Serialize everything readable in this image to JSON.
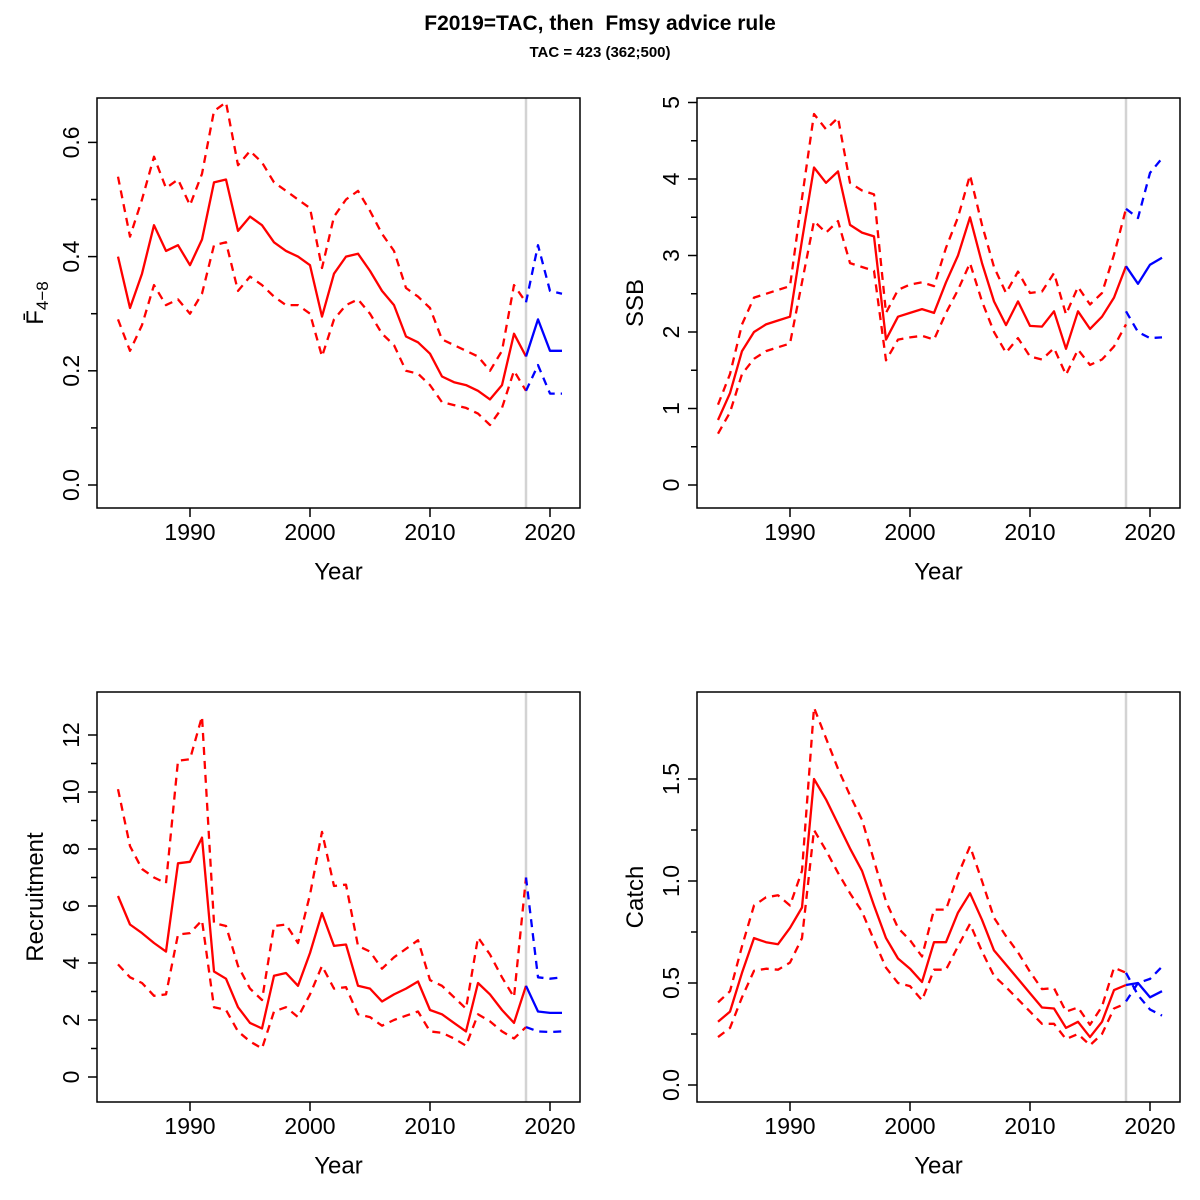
{
  "title": "F2019=TAC, then  Fmsy advice rule",
  "subtitle": "TAC = 423 (362;500)",
  "xlabel": "Year",
  "colors": {
    "historical": "#ff0000",
    "forecast": "#0000ff",
    "divider": "#d3d3d3",
    "axis": "#000000",
    "background": "#ffffff"
  },
  "x_axis": {
    "ticks": [
      1990,
      2000,
      2010,
      2020
    ],
    "range": [
      1984,
      2021
    ],
    "divider_year": 2018,
    "hist_start": 1984,
    "hist_end": 2018,
    "forecast_start": 2018,
    "forecast_end": 2021
  },
  "legend_semantics": {
    "red_solid": "historical median",
    "red_dashed": "historical confidence bounds",
    "blue_solid": "forecast median",
    "blue_dashed": "forecast confidence bounds",
    "gray_vertical_line": "assessment/forecast divider at 2018"
  },
  "chart_data": [
    {
      "id": "fbar",
      "type": "line",
      "position": "top-left",
      "ylabel_base": "F̄",
      "ylabel_sub": "4−8",
      "xlabel": "Year",
      "ylim": [
        0,
        0.68
      ],
      "yticks_labeled": [
        "0.0",
        "0.2",
        "0.4",
        "0.6"
      ],
      "ytick_values": [
        0.0,
        0.2,
        0.4,
        0.6
      ],
      "yticks_minor": [
        0.1,
        0.3,
        0.5
      ],
      "grid": false,
      "series": {
        "median": [
          0.4,
          0.31,
          0.37,
          0.455,
          0.41,
          0.42,
          0.385,
          0.43,
          0.53,
          0.535,
          0.445,
          0.47,
          0.455,
          0.425,
          0.41,
          0.4,
          0.385,
          0.295,
          0.37,
          0.4,
          0.405,
          0.375,
          0.34,
          0.315,
          0.26,
          0.25,
          0.23,
          0.19,
          0.18,
          0.175,
          0.165,
          0.15,
          0.175,
          0.265,
          0.225
        ],
        "upper": [
          0.54,
          0.435,
          0.5,
          0.575,
          0.52,
          0.535,
          0.49,
          0.545,
          0.655,
          0.67,
          0.56,
          0.585,
          0.565,
          0.53,
          0.515,
          0.5,
          0.485,
          0.38,
          0.47,
          0.5,
          0.515,
          0.48,
          0.44,
          0.41,
          0.345,
          0.33,
          0.31,
          0.255,
          0.245,
          0.235,
          0.225,
          0.2,
          0.235,
          0.35,
          0.32
        ],
        "lower": [
          0.29,
          0.235,
          0.28,
          0.35,
          0.315,
          0.325,
          0.3,
          0.335,
          0.42,
          0.425,
          0.34,
          0.365,
          0.35,
          0.33,
          0.315,
          0.315,
          0.3,
          0.225,
          0.29,
          0.315,
          0.325,
          0.3,
          0.265,
          0.245,
          0.2,
          0.195,
          0.175,
          0.145,
          0.14,
          0.135,
          0.125,
          0.105,
          0.135,
          0.2,
          0.165
        ],
        "forecast_median": [
          0.225,
          0.29,
          0.235,
          0.235
        ],
        "forecast_upper": [
          0.32,
          0.42,
          0.34,
          0.335
        ],
        "forecast_lower": [
          0.165,
          0.21,
          0.16,
          0.16
        ]
      }
    },
    {
      "id": "ssb",
      "type": "line",
      "position": "top-right",
      "ylabel_base": "SSB",
      "ylabel_sub": "",
      "xlabel": "Year",
      "ylim": [
        0,
        5
      ],
      "yticks_labeled": [
        "0",
        "1",
        "2",
        "3",
        "4",
        "5"
      ],
      "ytick_values": [
        0,
        1,
        2,
        3,
        4,
        5
      ],
      "yticks_minor": [
        0.5,
        1.5,
        2.5,
        3.5,
        4.5
      ],
      "grid": false,
      "series": {
        "median": [
          0.85,
          1.2,
          1.75,
          2.0,
          2.1,
          2.15,
          2.2,
          3.2,
          4.15,
          3.95,
          4.1,
          3.4,
          3.3,
          3.25,
          1.9,
          2.2,
          2.25,
          2.3,
          2.25,
          2.65,
          3.0,
          3.5,
          2.9,
          2.4,
          2.09,
          2.4,
          2.08,
          2.07,
          2.27,
          1.78,
          2.27,
          2.04,
          2.2,
          2.45,
          2.86
        ],
        "upper": [
          1.05,
          1.45,
          2.1,
          2.45,
          2.5,
          2.55,
          2.6,
          3.75,
          4.85,
          4.65,
          4.8,
          3.95,
          3.85,
          3.8,
          2.25,
          2.55,
          2.62,
          2.65,
          2.6,
          3.1,
          3.5,
          4.05,
          3.4,
          2.85,
          2.51,
          2.79,
          2.51,
          2.53,
          2.77,
          2.23,
          2.59,
          2.36,
          2.51,
          3.01,
          3.61
        ],
        "lower": [
          0.67,
          0.95,
          1.45,
          1.65,
          1.75,
          1.8,
          1.85,
          2.65,
          3.45,
          3.3,
          3.45,
          2.9,
          2.85,
          2.8,
          1.63,
          1.9,
          1.93,
          1.95,
          1.9,
          2.25,
          2.55,
          2.9,
          2.4,
          2.0,
          1.73,
          1.92,
          1.68,
          1.64,
          1.79,
          1.44,
          1.77,
          1.57,
          1.64,
          1.81,
          2.1
        ],
        "forecast_median": [
          2.86,
          2.63,
          2.88,
          2.97
        ],
        "forecast_upper": [
          3.61,
          3.49,
          4.08,
          4.27
        ],
        "forecast_lower": [
          2.27,
          2.0,
          1.92,
          1.93
        ]
      }
    },
    {
      "id": "recruitment",
      "type": "line",
      "position": "bottom-left",
      "ylabel_base": "Recruitment",
      "ylabel_sub": "",
      "xlabel": "Year",
      "ylim": [
        0,
        13
      ],
      "yticks_labeled": [
        "0",
        "2",
        "4",
        "6",
        "8",
        "10",
        "12"
      ],
      "ytick_values": [
        0,
        2,
        4,
        6,
        8,
        10,
        12
      ],
      "yticks_minor": [
        1,
        3,
        5,
        7,
        9,
        11
      ],
      "grid": false,
      "series": {
        "median": [
          6.35,
          5.35,
          5.05,
          4.7,
          4.4,
          7.5,
          7.55,
          8.4,
          3.7,
          3.45,
          2.45,
          1.9,
          1.7,
          3.55,
          3.65,
          3.2,
          4.35,
          5.75,
          4.6,
          4.65,
          3.2,
          3.1,
          2.65,
          2.9,
          3.1,
          3.35,
          2.35,
          2.2,
          1.9,
          1.6,
          3.3,
          2.9,
          2.35,
          1.9,
          3.2
        ],
        "upper": [
          10.1,
          8.1,
          7.3,
          7.0,
          6.8,
          11.1,
          11.15,
          12.65,
          5.4,
          5.3,
          3.9,
          3.1,
          2.7,
          5.3,
          5.35,
          4.7,
          6.4,
          8.6,
          6.7,
          6.75,
          4.6,
          4.4,
          3.8,
          4.2,
          4.5,
          4.8,
          3.4,
          3.2,
          2.8,
          2.4,
          4.9,
          4.3,
          3.5,
          2.8,
          7.0
        ],
        "lower": [
          3.95,
          3.5,
          3.3,
          2.85,
          2.9,
          5.0,
          5.05,
          5.5,
          2.45,
          2.35,
          1.6,
          1.25,
          1.0,
          2.3,
          2.45,
          2.1,
          2.9,
          3.9,
          3.1,
          3.15,
          2.2,
          2.1,
          1.8,
          2.0,
          2.15,
          2.3,
          1.6,
          1.55,
          1.35,
          1.1,
          2.2,
          1.95,
          1.6,
          1.35,
          1.75
        ],
        "forecast_median": [
          3.2,
          2.3,
          2.25,
          2.25
        ],
        "forecast_upper": [
          7.0,
          3.5,
          3.45,
          3.5
        ],
        "forecast_lower": [
          1.75,
          1.6,
          1.58,
          1.6
        ]
      }
    },
    {
      "id": "catch",
      "type": "line",
      "position": "bottom-right",
      "ylabel_base": "Catch",
      "ylabel_sub": "",
      "xlabel": "Year",
      "ylim": [
        0,
        1.9
      ],
      "yticks_labeled": [
        "0.0",
        "0.5",
        "1.0",
        "1.5"
      ],
      "ytick_values": [
        0.0,
        0.5,
        1.0,
        1.5
      ],
      "yticks_minor": [
        0.25,
        0.75,
        1.25
      ],
      "grid": false,
      "series": {
        "median": [
          0.31,
          0.36,
          0.55,
          0.72,
          0.7,
          0.69,
          0.77,
          0.87,
          1.5,
          1.4,
          1.28,
          1.16,
          1.05,
          0.88,
          0.72,
          0.62,
          0.57,
          0.505,
          0.7,
          0.7,
          0.845,
          0.94,
          0.81,
          0.66,
          0.59,
          0.52,
          0.45,
          0.38,
          0.375,
          0.28,
          0.31,
          0.235,
          0.31,
          0.465,
          0.49
        ],
        "upper": [
          0.405,
          0.46,
          0.68,
          0.88,
          0.92,
          0.93,
          0.88,
          1.05,
          1.85,
          1.7,
          1.55,
          1.42,
          1.3,
          1.1,
          0.9,
          0.77,
          0.71,
          0.63,
          0.86,
          0.86,
          1.03,
          1.17,
          1.0,
          0.82,
          0.73,
          0.65,
          0.555,
          0.47,
          0.475,
          0.36,
          0.38,
          0.295,
          0.385,
          0.575,
          0.55
        ],
        "lower": [
          0.235,
          0.28,
          0.43,
          0.56,
          0.57,
          0.565,
          0.6,
          0.72,
          1.25,
          1.15,
          1.04,
          0.94,
          0.85,
          0.71,
          0.575,
          0.5,
          0.485,
          0.415,
          0.565,
          0.565,
          0.68,
          0.79,
          0.655,
          0.535,
          0.48,
          0.42,
          0.36,
          0.3,
          0.3,
          0.225,
          0.25,
          0.195,
          0.25,
          0.375,
          0.4
        ],
        "forecast_median": [
          0.49,
          0.5,
          0.43,
          0.46
        ],
        "forecast_upper": [
          0.41,
          0.5,
          0.52,
          0.58
        ],
        "forecast_lower": [
          0.55,
          0.44,
          0.37,
          0.34
        ]
      }
    }
  ]
}
